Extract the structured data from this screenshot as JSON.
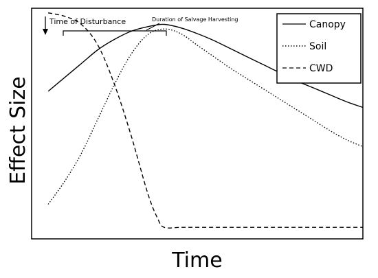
{
  "chart_data": {
    "type": "line",
    "xlabel": "Time",
    "ylabel": "Effect Size",
    "xlim": [
      0,
      100
    ],
    "ylim": [
      0,
      100
    ],
    "grid": false,
    "legend_position": "top-right",
    "annotations": {
      "disturbance": "Time of Disturbance",
      "salvage": "Duration of Salvage Harvesting"
    },
    "salvage_range": [
      6,
      40
    ],
    "disturbance_time": 0,
    "series": [
      {
        "name": "Canopy",
        "style": "solid",
        "x": [
          5,
          10,
          15,
          20,
          25,
          30,
          35,
          40,
          45,
          50,
          55,
          60,
          65,
          70,
          75,
          80,
          85,
          90,
          95,
          100
        ],
        "y": [
          64,
          70,
          76,
          82,
          86.5,
          90,
          92,
          93,
          91.5,
          89,
          86,
          82.5,
          79,
          75.5,
          72,
          68.5,
          65.5,
          62.5,
          59.5,
          57
        ]
      },
      {
        "name": "Soil",
        "style": "dotted",
        "x": [
          5,
          10,
          15,
          20,
          25,
          30,
          35,
          40,
          45,
          50,
          55,
          60,
          65,
          70,
          75,
          80,
          85,
          90,
          95,
          100
        ],
        "y": [
          15,
          25,
          37,
          52,
          67,
          80,
          88.5,
          91,
          89,
          84,
          79,
          74,
          69.5,
          65,
          60.5,
          56,
          51.5,
          47,
          43,
          40
        ]
      },
      {
        "name": "CWD",
        "style": "dashed",
        "x": [
          5,
          10,
          15,
          20,
          25,
          30,
          35,
          38,
          40,
          45,
          50,
          55,
          60,
          65,
          70,
          75,
          80,
          85,
          90,
          95,
          100
        ],
        "y": [
          98,
          96.5,
          93,
          84,
          67,
          45,
          20,
          9,
          5,
          5,
          5,
          5,
          5,
          5,
          5,
          5,
          5,
          5,
          5,
          5,
          5
        ]
      }
    ]
  }
}
